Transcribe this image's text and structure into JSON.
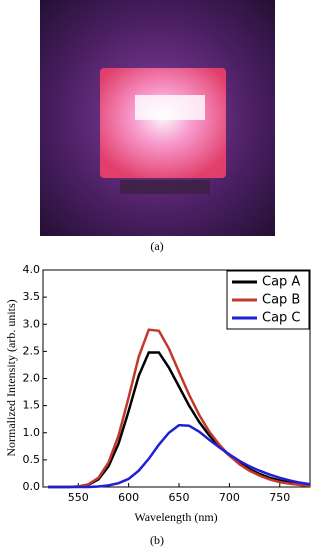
{
  "captions": [
    "(a)",
    "(b)"
  ],
  "chart_data": {
    "type": "line",
    "x": [
      520,
      530,
      540,
      550,
      560,
      570,
      580,
      590,
      600,
      610,
      620,
      630,
      640,
      650,
      660,
      670,
      680,
      690,
      700,
      710,
      720,
      730,
      740,
      750,
      760,
      770,
      780
    ],
    "series": [
      {
        "name": "Cap A",
        "color": "#000000",
        "values": [
          0,
          0,
          0,
          0.01,
          0.04,
          0.14,
          0.38,
          0.8,
          1.4,
          2.05,
          2.48,
          2.48,
          2.2,
          1.85,
          1.5,
          1.2,
          0.95,
          0.75,
          0.58,
          0.44,
          0.33,
          0.24,
          0.17,
          0.12,
          0.08,
          0.05,
          0.03
        ]
      },
      {
        "name": "Cap B",
        "color": "#c0392b",
        "values": [
          0,
          0,
          0,
          0.01,
          0.05,
          0.17,
          0.45,
          0.95,
          1.65,
          2.4,
          2.9,
          2.88,
          2.55,
          2.12,
          1.7,
          1.33,
          1.02,
          0.78,
          0.58,
          0.42,
          0.3,
          0.21,
          0.14,
          0.09,
          0.06,
          0.04,
          0.02
        ]
      },
      {
        "name": "Cap C",
        "color": "#1f1fd6",
        "values": [
          0,
          0,
          0,
          0,
          0,
          0.01,
          0.03,
          0.07,
          0.15,
          0.3,
          0.52,
          0.78,
          1.0,
          1.14,
          1.13,
          1.02,
          0.87,
          0.73,
          0.6,
          0.48,
          0.38,
          0.3,
          0.23,
          0.17,
          0.12,
          0.08,
          0.05
        ]
      }
    ],
    "xlabel": "Wavelength (nm)",
    "ylabel": "Normalized Intensity (arb. units)",
    "xlim": [
      515,
      780
    ],
    "xticks": [
      550,
      600,
      650,
      700,
      750
    ],
    "ylim": [
      0,
      4
    ],
    "yticks": [
      {
        "value": 0,
        "label": "0.0"
      },
      {
        "value": 0.5,
        "label": "0.5"
      },
      {
        "value": 1,
        "label": "1.0"
      },
      {
        "value": 1.5,
        "label": "1.5"
      },
      {
        "value": 2,
        "label": "2.0"
      },
      {
        "value": 2.5,
        "label": "2.5"
      },
      {
        "value": 3,
        "label": "3.0"
      },
      {
        "value": 3.5,
        "label": "3.5"
      },
      {
        "value": 4,
        "label": "4.0"
      }
    ],
    "legend": "top-right"
  }
}
